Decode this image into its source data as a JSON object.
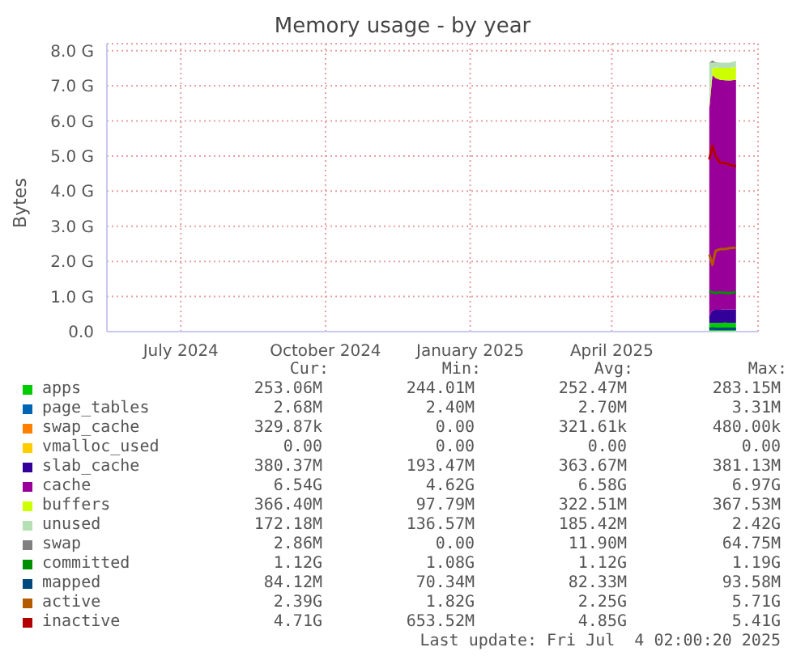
{
  "chart_data": {
    "type": "area",
    "stacked": true,
    "title": "Memory usage - by year",
    "ylabel": "Bytes",
    "x": [
      "2025-06-17",
      "2025-06-19",
      "2025-06-21",
      "2025-06-24",
      "2025-06-27",
      "2025-06-30",
      "2025-07-04"
    ],
    "xlim": [
      "2024-05-30",
      "2025-07-18"
    ],
    "xticks": [
      {
        "value": "2024-07-16",
        "label": "July 2024"
      },
      {
        "value": "2024-10-16",
        "label": "October 2024"
      },
      {
        "value": "2025-01-16",
        "label": "January 2025"
      },
      {
        "value": "2025-04-16",
        "label": "April 2025"
      }
    ],
    "ylim": [
      0,
      8.2
    ],
    "yticks": [
      {
        "value": 0,
        "label": "0.0"
      },
      {
        "value": 1,
        "label": "1.0 G"
      },
      {
        "value": 2,
        "label": "2.0 G"
      },
      {
        "value": 3,
        "label": "3.0 G"
      },
      {
        "value": 4,
        "label": "4.0 G"
      },
      {
        "value": 5,
        "label": "5.0 G"
      },
      {
        "value": 6,
        "label": "6.0 G"
      },
      {
        "value": 7,
        "label": "7.0 G"
      },
      {
        "value": 8,
        "label": "8.0 G"
      }
    ],
    "grid": true,
    "legend": "bottom",
    "series": [
      {
        "name": "apps",
        "color": "#00cc00",
        "values": [
          0.25,
          0.25,
          0.25,
          0.25,
          0.26,
          0.25,
          0.25
        ]
      },
      {
        "name": "page_tables",
        "color": "#0066b3",
        "values": [
          null,
          null,
          null,
          null,
          null,
          null,
          null
        ]
      },
      {
        "name": "swap_cache",
        "color": "#ff8000",
        "values": [
          null,
          null,
          null,
          null,
          null,
          null,
          null
        ]
      },
      {
        "name": "vmalloc_used",
        "color": "#ffcc00",
        "values": [
          null,
          null,
          null,
          null,
          null,
          null,
          null
        ]
      },
      {
        "name": "slab_cache",
        "color": "#330099",
        "values": [
          0.2,
          0.36,
          0.37,
          0.37,
          0.38,
          0.38,
          0.38
        ]
      },
      {
        "name": "cache",
        "color": "#990099",
        "values": [
          5.9,
          6.7,
          6.6,
          6.55,
          6.52,
          6.52,
          6.54
        ]
      },
      {
        "name": "buffers",
        "color": "#ccff00",
        "values": [
          0.1,
          0.2,
          0.3,
          0.34,
          0.35,
          0.36,
          0.37
        ]
      },
      {
        "name": "unused",
        "color": "#b4e0b4",
        "values": [
          1.21,
          0.15,
          0.14,
          0.15,
          0.15,
          0.15,
          0.17
        ]
      },
      {
        "name": "swap",
        "color": "#808080",
        "values": [
          0,
          0.06,
          0.01,
          0,
          0,
          0,
          0
        ]
      },
      {
        "name": "committed",
        "type": "line",
        "color": "#008f00",
        "values": [
          1.15,
          1.12,
          1.1,
          1.12,
          1.1,
          1.1,
          1.12
        ]
      },
      {
        "name": "mapped",
        "type": "line",
        "color": "#00487d",
        "values": [
          0.08,
          0.09,
          0.08,
          0.08,
          0.08,
          0.08,
          0.08
        ]
      },
      {
        "name": "active",
        "type": "line",
        "color": "#b35a00",
        "values": [
          2.2,
          1.9,
          2.3,
          2.35,
          2.35,
          2.38,
          2.39
        ]
      },
      {
        "name": "inactive",
        "type": "line",
        "color": "#b30000",
        "values": [
          4.9,
          5.3,
          5.0,
          4.8,
          4.8,
          4.75,
          4.71
        ]
      }
    ],
    "annotations": [
      "Cur:",
      "Min:",
      "Avg:",
      "Max:",
      "253.06M",
      "244.01M",
      "252.47M",
      "283.15M",
      "2.68M",
      "2.40M",
      "2.70M",
      "3.31M",
      "329.87k",
      "0.00",
      "321.61k",
      "480.00k",
      "0.00",
      "0.00",
      "0.00",
      "0.00",
      "380.37M",
      "193.47M",
      "363.67M",
      "381.13M",
      "6.54G",
      "4.62G",
      "6.58G",
      "6.97G",
      "366.40M",
      "97.79M",
      "322.51M",
      "367.53M",
      "172.18M",
      "136.57M",
      "185.42M",
      "2.42G",
      "2.86M",
      "0.00",
      "11.90M",
      "64.75M",
      "1.12G",
      "1.08G",
      "1.12G",
      "1.19G",
      "84.12M",
      "70.34M",
      "82.33M",
      "93.58M",
      "2.39G",
      "1.82G",
      "2.25G",
      "5.71G",
      "4.71G",
      "653.52M",
      "4.85G",
      "5.41G",
      "Last update: Fri Jul  4 02:00:20 2025"
    ]
  }
}
